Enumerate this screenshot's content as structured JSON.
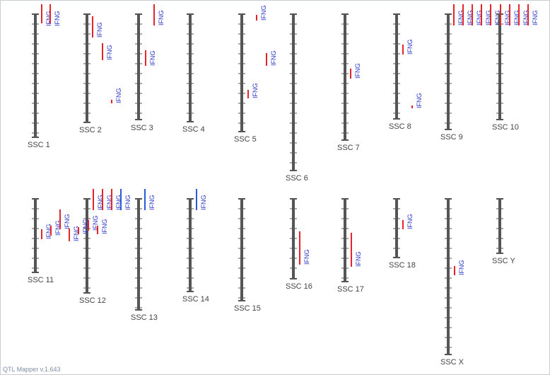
{
  "app": {
    "footer": "QTL Mapper v.1.643"
  },
  "colors": {
    "chromosome": "#555555",
    "tick": "#555555",
    "qtl_red": "#e3242b",
    "qtl_blue": "#2a5bd7",
    "label_text": "#2a37c8"
  },
  "chromosomes": [
    {
      "label": "SSC 1",
      "qtls": [
        {
          "color": "red",
          "text": "IFNG"
        },
        {
          "color": "red",
          "text": "IFNG"
        }
      ]
    },
    {
      "label": "SSC 2",
      "qtls": [
        {
          "color": "red",
          "text": "IFNG"
        },
        {
          "color": "red",
          "text": "IFNG"
        },
        {
          "color": "red",
          "text": "IFNG"
        }
      ]
    },
    {
      "label": "SSC 3",
      "qtls": [
        {
          "color": "red",
          "text": "IFNG"
        },
        {
          "color": "red",
          "text": "IFNG"
        }
      ]
    },
    {
      "label": "SSC 4",
      "qtls": []
    },
    {
      "label": "SSC 5",
      "qtls": [
        {
          "color": "red",
          "text": "IFNG"
        },
        {
          "color": "red",
          "text": "IFNG"
        },
        {
          "color": "red",
          "text": "IFNG"
        }
      ]
    },
    {
      "label": "SSC 6",
      "qtls": []
    },
    {
      "label": "SSC 7",
      "qtls": [
        {
          "color": "red",
          "text": "IFNG"
        }
      ]
    },
    {
      "label": "SSC 8",
      "qtls": [
        {
          "color": "red",
          "text": "IFNG"
        },
        {
          "color": "red",
          "text": "IFNG"
        }
      ]
    },
    {
      "label": "SSC 9",
      "qtls": [
        {
          "color": "red",
          "text": "IFNG"
        },
        {
          "color": "red",
          "text": "IFNG"
        },
        {
          "color": "red",
          "text": "IFNG"
        },
        {
          "color": "red",
          "text": "IFNG"
        },
        {
          "color": "red",
          "text": "IFNG"
        }
      ]
    },
    {
      "label": "SSC 10",
      "qtls": [
        {
          "color": "red",
          "text": "IFNG"
        },
        {
          "color": "red",
          "text": "IFNG"
        },
        {
          "color": "red",
          "text": "IFNG"
        },
        {
          "color": "red",
          "text": "IFNG"
        }
      ]
    },
    {
      "label": "SSC 11",
      "qtls": [
        {
          "color": "red",
          "text": "IFNG"
        },
        {
          "color": "red",
          "text": "IFNG"
        },
        {
          "color": "red",
          "text": "IFNG"
        },
        {
          "color": "red",
          "text": "IFNG"
        }
      ]
    },
    {
      "label": "SSC 12",
      "qtls": [
        {
          "color": "red",
          "text": "IFNG"
        },
        {
          "color": "red",
          "text": "IFNG"
        },
        {
          "color": "red",
          "text": "IFNG"
        },
        {
          "color": "red",
          "text": "IFNG"
        },
        {
          "color": "red",
          "text": "IFNG"
        },
        {
          "color": "red",
          "text": "IFNG"
        },
        {
          "color": "blue",
          "text": "IFNG"
        }
      ]
    },
    {
      "label": "SSC 13",
      "qtls": [
        {
          "color": "blue",
          "text": "IFNG"
        }
      ]
    },
    {
      "label": "SSC 14",
      "qtls": [
        {
          "color": "blue",
          "text": "IFNG"
        }
      ]
    },
    {
      "label": "SSC 15",
      "qtls": []
    },
    {
      "label": "SSC 16",
      "qtls": [
        {
          "color": "red",
          "text": "IFNG"
        }
      ]
    },
    {
      "label": "SSC 17",
      "qtls": [
        {
          "color": "red",
          "text": "IFNG"
        }
      ]
    },
    {
      "label": "SSC 18",
      "qtls": [
        {
          "color": "red",
          "text": "IFNG"
        }
      ]
    },
    {
      "label": "SSC X",
      "qtls": [
        {
          "color": "red",
          "text": "IFNG"
        }
      ]
    },
    {
      "label": "SSC Y",
      "qtls": []
    }
  ]
}
